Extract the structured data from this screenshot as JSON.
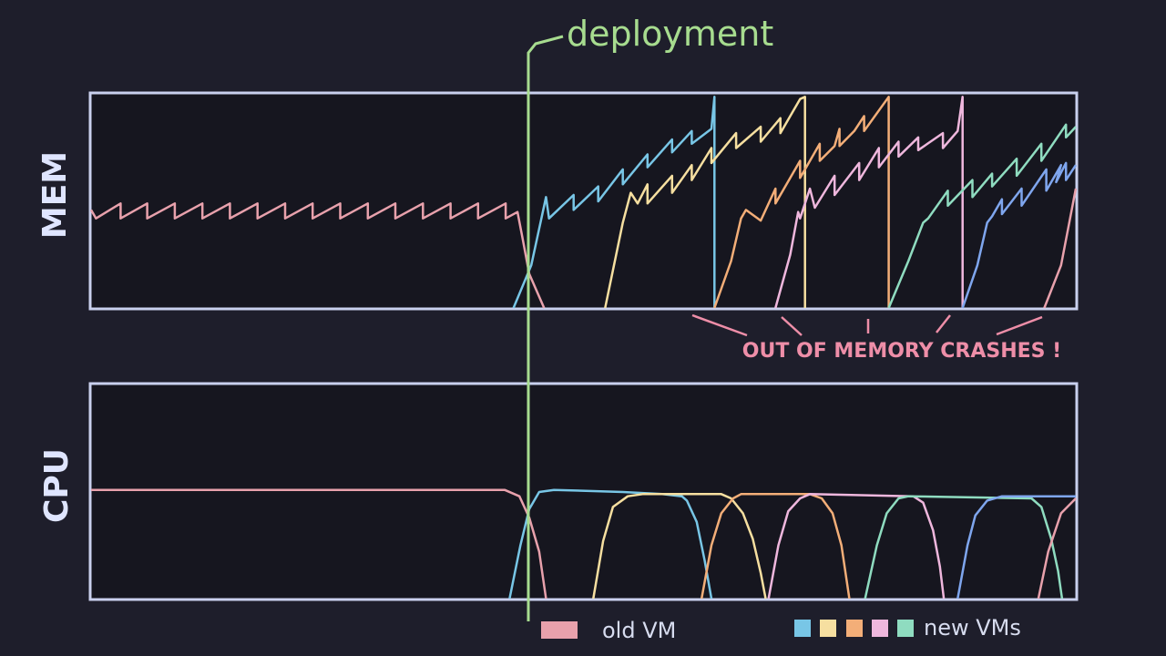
{
  "annotations": {
    "deployment": "deployment",
    "crashes": "OUT OF MEMORY CRASHES !"
  },
  "legend": {
    "old": "old VM",
    "new": "new VMs"
  },
  "colors": {
    "background": "#1e1e2b",
    "plot_bg": "#16161f",
    "frame": "#c9d0ee",
    "old_vm": "#e8a1ac",
    "deployment": "#a7dc8f",
    "crash": "#ee8ea8",
    "new_vms": [
      "#78c6e6",
      "#f6dfa0",
      "#f3ae78",
      "#efb7dd",
      "#8fdcc0",
      "#7fa6ee"
    ]
  },
  "chart_data": [
    {
      "type": "line",
      "title": "",
      "ylabel": "MEM",
      "xlabel": "",
      "xlim": [
        0,
        1
      ],
      "ylim": [
        0,
        1
      ],
      "series": [
        {
          "name": "old VM",
          "color": "#e8a1ac",
          "points": [
            [
              0,
              0.46
            ],
            [
              0.005,
              0.42
            ],
            [
              0.03,
              0.49
            ],
            [
              0.03,
              0.42
            ],
            [
              0.057,
              0.49
            ],
            [
              0.057,
              0.42
            ],
            [
              0.085,
              0.49
            ],
            [
              0.085,
              0.42
            ],
            [
              0.113,
              0.49
            ],
            [
              0.113,
              0.42
            ],
            [
              0.141,
              0.49
            ],
            [
              0.141,
              0.42
            ],
            [
              0.169,
              0.49
            ],
            [
              0.169,
              0.42
            ],
            [
              0.197,
              0.49
            ],
            [
              0.197,
              0.42
            ],
            [
              0.225,
              0.49
            ],
            [
              0.225,
              0.42
            ],
            [
              0.253,
              0.49
            ],
            [
              0.253,
              0.42
            ],
            [
              0.281,
              0.49
            ],
            [
              0.281,
              0.42
            ],
            [
              0.309,
              0.49
            ],
            [
              0.309,
              0.42
            ],
            [
              0.337,
              0.49
            ],
            [
              0.337,
              0.42
            ],
            [
              0.365,
              0.49
            ],
            [
              0.365,
              0.42
            ],
            [
              0.393,
              0.49
            ],
            [
              0.393,
              0.42
            ],
            [
              0.421,
              0.49
            ],
            [
              0.421,
              0.42
            ],
            [
              0.433,
              0.45
            ],
            [
              0.438,
              0.33
            ],
            [
              0.445,
              0.16
            ],
            [
              0.46,
              0
            ]
          ]
        },
        {
          "name": "",
          "color": "#78c6e6",
          "points": [
            [
              0.429,
              0
            ],
            [
              0.447,
              0.2
            ],
            [
              0.462,
              0.52
            ],
            [
              0.465,
              0.42
            ],
            [
              0.49,
              0.53
            ],
            [
              0.49,
              0.46
            ],
            [
              0.515,
              0.57
            ],
            [
              0.515,
              0.5
            ],
            [
              0.54,
              0.65
            ],
            [
              0.54,
              0.58
            ],
            [
              0.565,
              0.72
            ],
            [
              0.565,
              0.66
            ],
            [
              0.59,
              0.79
            ],
            [
              0.59,
              0.73
            ],
            [
              0.61,
              0.83
            ],
            [
              0.61,
              0.77
            ],
            [
              0.63,
              0.84
            ],
            [
              0.633,
              0.99
            ],
            [
              0.633,
              0
            ]
          ]
        },
        {
          "name": "",
          "color": "#f6dfa0",
          "points": [
            [
              0.522,
              0
            ],
            [
              0.54,
              0.4
            ],
            [
              0.548,
              0.54
            ],
            [
              0.555,
              0.49
            ],
            [
              0.565,
              0.58
            ],
            [
              0.565,
              0.49
            ],
            [
              0.59,
              0.62
            ],
            [
              0.59,
              0.54
            ],
            [
              0.61,
              0.67
            ],
            [
              0.61,
              0.6
            ],
            [
              0.63,
              0.75
            ],
            [
              0.63,
              0.68
            ],
            [
              0.655,
              0.82
            ],
            [
              0.655,
              0.75
            ],
            [
              0.68,
              0.85
            ],
            [
              0.68,
              0.78
            ],
            [
              0.7,
              0.89
            ],
            [
              0.7,
              0.82
            ],
            [
              0.72,
              0.98
            ],
            [
              0.725,
              0.99
            ],
            [
              0.725,
              0
            ]
          ]
        },
        {
          "name": "",
          "color": "#f3ae78",
          "points": [
            [
              0.633,
              0
            ],
            [
              0.65,
              0.22
            ],
            [
              0.66,
              0.42
            ],
            [
              0.665,
              0.46
            ],
            [
              0.68,
              0.41
            ],
            [
              0.695,
              0.56
            ],
            [
              0.695,
              0.49
            ],
            [
              0.72,
              0.69
            ],
            [
              0.72,
              0.61
            ],
            [
              0.74,
              0.77
            ],
            [
              0.74,
              0.69
            ],
            [
              0.755,
              0.76
            ],
            [
              0.76,
              0.84
            ],
            [
              0.76,
              0.76
            ],
            [
              0.775,
              0.83
            ],
            [
              0.785,
              0.9
            ],
            [
              0.785,
              0.83
            ],
            [
              0.81,
              0.99
            ],
            [
              0.81,
              0
            ]
          ]
        },
        {
          "name": "",
          "color": "#efb7dd",
          "points": [
            [
              0.695,
              0
            ],
            [
              0.71,
              0.25
            ],
            [
              0.718,
              0.45
            ],
            [
              0.72,
              0.42
            ],
            [
              0.73,
              0.56
            ],
            [
              0.735,
              0.47
            ],
            [
              0.755,
              0.62
            ],
            [
              0.755,
              0.53
            ],
            [
              0.78,
              0.68
            ],
            [
              0.78,
              0.6
            ],
            [
              0.8,
              0.75
            ],
            [
              0.8,
              0.66
            ],
            [
              0.82,
              0.78
            ],
            [
              0.82,
              0.71
            ],
            [
              0.84,
              0.8
            ],
            [
              0.84,
              0.74
            ],
            [
              0.865,
              0.82
            ],
            [
              0.865,
              0.75
            ],
            [
              0.88,
              0.83
            ],
            [
              0.885,
              0.99
            ],
            [
              0.885,
              0
            ]
          ]
        },
        {
          "name": "",
          "color": "#8fdcc0",
          "points": [
            [
              0.81,
              0
            ],
            [
              0.83,
              0.22
            ],
            [
              0.845,
              0.4
            ],
            [
              0.85,
              0.42
            ],
            [
              0.87,
              0.55
            ],
            [
              0.87,
              0.48
            ],
            [
              0.895,
              0.6
            ],
            [
              0.895,
              0.52
            ],
            [
              0.915,
              0.63
            ],
            [
              0.915,
              0.57
            ],
            [
              0.94,
              0.7
            ],
            [
              0.94,
              0.62
            ],
            [
              0.965,
              0.77
            ],
            [
              0.965,
              0.69
            ],
            [
              0.99,
              0.86
            ],
            [
              0.99,
              0.8
            ],
            [
              1.0,
              0.85
            ]
          ]
        },
        {
          "name": "",
          "color": "#7fa6ee",
          "points": [
            [
              0.885,
              0
            ],
            [
              0.9,
              0.2
            ],
            [
              0.91,
              0.4
            ],
            [
              0.915,
              0.43
            ],
            [
              0.925,
              0.51
            ],
            [
              0.925,
              0.44
            ],
            [
              0.945,
              0.56
            ],
            [
              0.945,
              0.48
            ],
            [
              0.97,
              0.65
            ],
            [
              0.97,
              0.55
            ],
            [
              0.985,
              0.67
            ],
            [
              0.98,
              0.59
            ],
            [
              0.99,
              0.68
            ],
            [
              0.99,
              0.6
            ],
            [
              1.0,
              0.67
            ]
          ]
        },
        {
          "name": "",
          "color": "#e8a1ac",
          "points": [
            [
              0.968,
              0
            ],
            [
              0.985,
              0.2
            ],
            [
              1.0,
              0.56
            ]
          ]
        }
      ]
    },
    {
      "type": "line",
      "title": "",
      "ylabel": "CPU",
      "xlabel": "",
      "xlim": [
        0,
        1
      ],
      "ylim": [
        0,
        1
      ],
      "series": [
        {
          "name": "old VM",
          "color": "#e8a1ac",
          "points": [
            [
              0,
              0.51
            ],
            [
              0.42,
              0.51
            ],
            [
              0.435,
              0.48
            ],
            [
              0.445,
              0.38
            ],
            [
              0.455,
              0.22
            ],
            [
              0.462,
              0
            ]
          ]
        },
        {
          "name": "",
          "color": "#78c6e6",
          "points": [
            [
              0.425,
              0
            ],
            [
              0.436,
              0.25
            ],
            [
              0.445,
              0.42
            ],
            [
              0.455,
              0.5
            ],
            [
              0.47,
              0.51
            ],
            [
              0.54,
              0.5
            ],
            [
              0.58,
              0.49
            ],
            [
              0.6,
              0.48
            ],
            [
              0.605,
              0.46
            ],
            [
              0.615,
              0.36
            ],
            [
              0.623,
              0.18
            ],
            [
              0.63,
              0
            ]
          ]
        },
        {
          "name": "",
          "color": "#f6dfa0",
          "points": [
            [
              0.51,
              0
            ],
            [
              0.52,
              0.27
            ],
            [
              0.53,
              0.43
            ],
            [
              0.545,
              0.48
            ],
            [
              0.56,
              0.49
            ],
            [
              0.64,
              0.49
            ],
            [
              0.65,
              0.47
            ],
            [
              0.662,
              0.4
            ],
            [
              0.672,
              0.28
            ],
            [
              0.68,
              0.12
            ],
            [
              0.685,
              0
            ]
          ]
        },
        {
          "name": "",
          "color": "#f3ae78",
          "points": [
            [
              0.62,
              0
            ],
            [
              0.63,
              0.25
            ],
            [
              0.64,
              0.4
            ],
            [
              0.652,
              0.47
            ],
            [
              0.66,
              0.49
            ],
            [
              0.73,
              0.49
            ],
            [
              0.742,
              0.47
            ],
            [
              0.753,
              0.4
            ],
            [
              0.762,
              0.25
            ],
            [
              0.77,
              0
            ]
          ]
        },
        {
          "name": "",
          "color": "#efb7dd",
          "points": [
            [
              0.688,
              0
            ],
            [
              0.698,
              0.25
            ],
            [
              0.708,
              0.41
            ],
            [
              0.72,
              0.47
            ],
            [
              0.73,
              0.49
            ],
            [
              0.835,
              0.48
            ],
            [
              0.845,
              0.45
            ],
            [
              0.855,
              0.32
            ],
            [
              0.862,
              0.15
            ],
            [
              0.866,
              0
            ]
          ]
        },
        {
          "name": "",
          "color": "#8fdcc0",
          "points": [
            [
              0.786,
              0
            ],
            [
              0.798,
              0.25
            ],
            [
              0.808,
              0.4
            ],
            [
              0.82,
              0.47
            ],
            [
              0.83,
              0.48
            ],
            [
              0.955,
              0.47
            ],
            [
              0.965,
              0.43
            ],
            [
              0.975,
              0.28
            ],
            [
              0.982,
              0.13
            ],
            [
              0.986,
              0
            ]
          ]
        },
        {
          "name": "",
          "color": "#7fa6ee",
          "points": [
            [
              0.88,
              0
            ],
            [
              0.89,
              0.25
            ],
            [
              0.898,
              0.39
            ],
            [
              0.91,
              0.46
            ],
            [
              0.925,
              0.48
            ],
            [
              1.0,
              0.48
            ]
          ]
        },
        {
          "name": "",
          "color": "#e8a1ac",
          "points": [
            [
              0.962,
              0
            ],
            [
              0.972,
              0.22
            ],
            [
              0.985,
              0.4
            ],
            [
              1.0,
              0.47
            ]
          ]
        }
      ]
    }
  ]
}
